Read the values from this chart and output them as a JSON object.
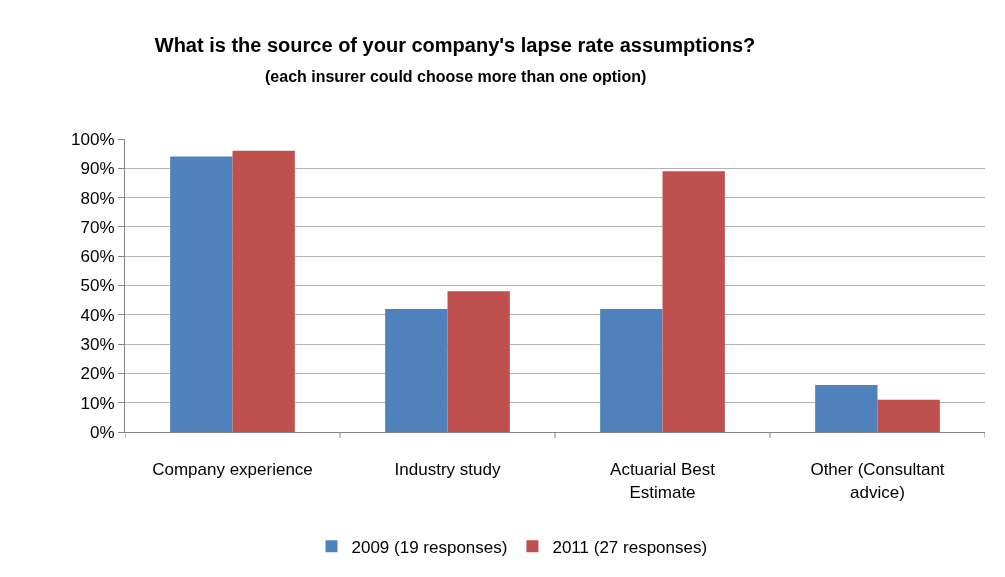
{
  "chart_data": {
    "type": "bar",
    "title": "What is the source of your company's lapse rate assumptions?",
    "subtitle": "(each insurer could choose more than one option)",
    "categories": [
      "Company experience",
      "Industry study",
      "Actuarial Best Estimate",
      "Other (Consultant advice)"
    ],
    "series": [
      {
        "name": "2009 (19 responses)",
        "color": "#4f81bd",
        "values": [
          94,
          42,
          42,
          16
        ]
      },
      {
        "name": "2011 (27 responses)",
        "color": "#c0504d",
        "values": [
          96,
          48,
          89,
          11
        ]
      }
    ],
    "ylim": [
      0,
      100
    ],
    "yticks": [
      {
        "value": 0,
        "label": "0%"
      },
      {
        "value": 10,
        "label": "10%"
      },
      {
        "value": 20,
        "label": "20%"
      },
      {
        "value": 30,
        "label": "30%"
      },
      {
        "value": 40,
        "label": "40%"
      },
      {
        "value": 50,
        "label": "50%"
      },
      {
        "value": 60,
        "label": "60%"
      },
      {
        "value": 70,
        "label": "70%"
      },
      {
        "value": 80,
        "label": "80%"
      },
      {
        "value": 90,
        "label": "90%"
      },
      {
        "value": 100,
        "label": "100%"
      }
    ],
    "grid": "y",
    "legend": "bottom"
  }
}
